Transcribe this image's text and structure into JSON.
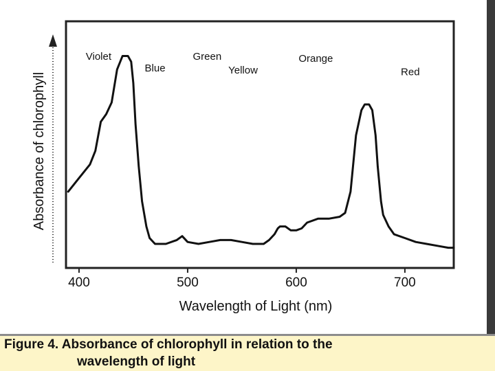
{
  "chart_data": {
    "type": "line",
    "title": "",
    "xlabel": "Wavelength of Light (nm)",
    "ylabel": "Absorbance of chlorophyll",
    "xlim": [
      388,
      745
    ],
    "ylim": [
      0,
      1
    ],
    "x_ticks": [
      400,
      500,
      600,
      700
    ],
    "x_tick_labels": [
      "400",
      "500",
      "600",
      "700"
    ],
    "grid": false,
    "color_region_labels": [
      {
        "text": "Violet",
        "x": 418,
        "y": 0.95
      },
      {
        "text": "Blue",
        "x": 470,
        "y": 0.89
      },
      {
        "text": "Green",
        "x": 518,
        "y": 0.95
      },
      {
        "text": "Yellow",
        "x": 551,
        "y": 0.88
      },
      {
        "text": "Orange",
        "x": 618,
        "y": 0.94
      },
      {
        "text": "Red",
        "x": 705,
        "y": 0.87
      }
    ],
    "series": [
      {
        "x": [
          390,
          400,
          410,
          415,
          420,
          425,
          430,
          435,
          440,
          445,
          448,
          450,
          452,
          455,
          458,
          462,
          465,
          470,
          480,
          490,
          495,
          500,
          510,
          520,
          530,
          540,
          550,
          560,
          570,
          575,
          580,
          583,
          585,
          590,
          595,
          600,
          605,
          610,
          620,
          630,
          640,
          645,
          650,
          655,
          660,
          663,
          667,
          670,
          673,
          675,
          678,
          680,
          685,
          690,
          700,
          710,
          720,
          730,
          740,
          745
        ],
        "y": [
          0.27,
          0.34,
          0.41,
          0.48,
          0.63,
          0.67,
          0.73,
          0.9,
          0.97,
          0.97,
          0.94,
          0.83,
          0.62,
          0.4,
          0.22,
          0.09,
          0.03,
          0.0,
          0.0,
          0.02,
          0.04,
          0.01,
          0.0,
          0.01,
          0.02,
          0.02,
          0.01,
          0.0,
          0.0,
          0.02,
          0.05,
          0.08,
          0.09,
          0.09,
          0.07,
          0.07,
          0.08,
          0.11,
          0.13,
          0.13,
          0.14,
          0.16,
          0.27,
          0.56,
          0.69,
          0.72,
          0.72,
          0.69,
          0.56,
          0.4,
          0.22,
          0.15,
          0.09,
          0.05,
          0.03,
          0.01,
          0.0,
          -0.01,
          -0.02,
          -0.02
        ]
      }
    ]
  },
  "caption": {
    "line1": "Figure 4. Absorbance of chlorophyll in relation to the",
    "line2": "wavelength of light"
  }
}
